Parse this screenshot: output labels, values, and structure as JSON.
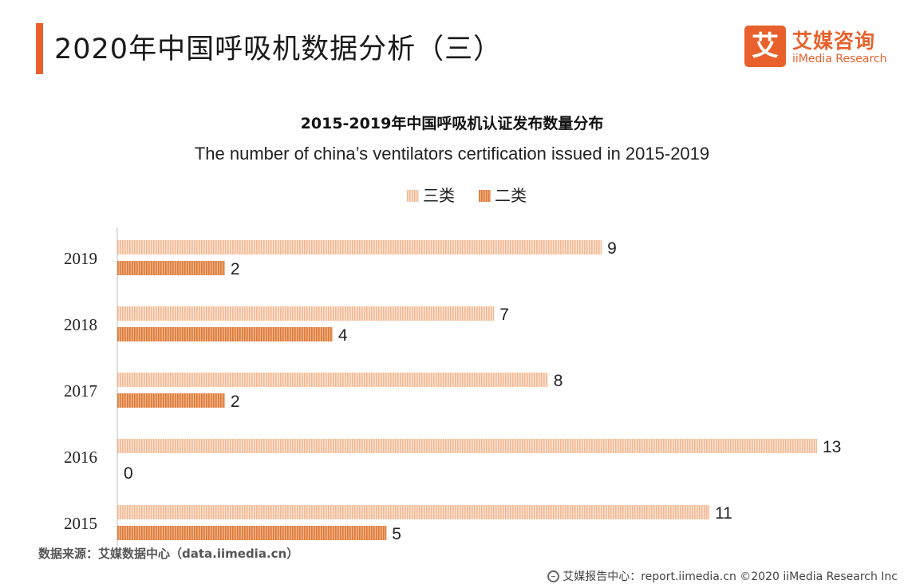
{
  "header": {
    "title": "2020年中国呼吸机数据分析（三）",
    "logo_mark": "艾",
    "logo_cn": "艾媒咨询",
    "logo_en": "iiMedia Research"
  },
  "colors": {
    "accent": "#e8612c",
    "series1": "#f6c3a2",
    "series2": "#e98c4d"
  },
  "chart_data": {
    "type": "bar",
    "orientation": "horizontal",
    "title": "2015-2019年中国呼吸机认证发布数量分布",
    "subtitle": "The number of china’s ventilators certification issued in 2015-2019",
    "categories": [
      "2019",
      "2018",
      "2017",
      "2016",
      "2015"
    ],
    "series": [
      {
        "name": "三类",
        "values": [
          9,
          7,
          8,
          13,
          11
        ]
      },
      {
        "name": "二类",
        "values": [
          2,
          4,
          2,
          0,
          5
        ]
      }
    ],
    "xlim": [
      0,
      13
    ],
    "xlabel": "",
    "ylabel": "",
    "grid": false,
    "legend": "top-center"
  },
  "source": "数据来源：艾媒数据中心（data.iimedia.cn）",
  "footer": {
    "text": "艾媒报告中心：report.iimedia.cn  ©2020  iiMedia Research  Inc"
  }
}
